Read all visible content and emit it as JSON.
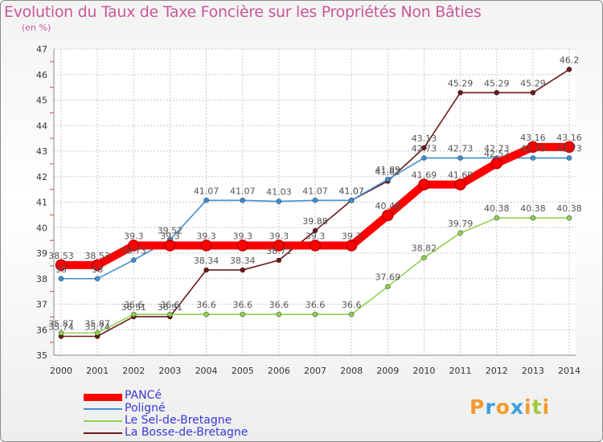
{
  "title": "Evolution du Taux de Taxe Foncière sur les Propriétés Non Bâties",
  "subtitle": "(en %)",
  "brand": {
    "text": "Proxiti",
    "letter_colors": [
      "#f29a2e",
      "#3aa0d8",
      "#f29a2e",
      "#3aa0d8",
      "#f29a2e",
      "#a3c83c",
      "#f29a2e"
    ]
  },
  "chart_data": {
    "type": "line",
    "title": "Evolution du Taux de Taxe Foncière sur les Propriétés Non Bâties",
    "ylabel": "(en %)",
    "xlabel": "",
    "ylim": [
      35,
      47
    ],
    "yticks": [
      35,
      36,
      37,
      38,
      39,
      40,
      41,
      42,
      43,
      44,
      45,
      46,
      47
    ],
    "x": [
      "2000",
      "2001",
      "2002",
      "2003",
      "2004",
      "2005",
      "2006",
      "2007",
      "2008",
      "2009",
      "2010",
      "2011",
      "2012",
      "2013",
      "2014"
    ],
    "grid": true,
    "legend_position": "bottom-left",
    "series": [
      {
        "name": "PANCé",
        "color": "#ff0000",
        "values": [
          38.53,
          38.53,
          39.3,
          39.3,
          39.3,
          39.3,
          39.3,
          39.3,
          39.3,
          40.48,
          41.69,
          41.69,
          42.52,
          43.16,
          43.16
        ]
      },
      {
        "name": "Poligné",
        "color": "#3f8fd2",
        "values": [
          38,
          38,
          38.73,
          39.52,
          41.07,
          41.07,
          41.03,
          41.07,
          41.07,
          41.89,
          42.73,
          42.73,
          42.73,
          42.73,
          42.73
        ]
      },
      {
        "name": "Le Sel-de-Bretagne",
        "color": "#8fd14f",
        "values": [
          35.87,
          35.87,
          36.6,
          36.6,
          36.6,
          36.6,
          36.6,
          36.6,
          36.6,
          37.69,
          38.82,
          39.79,
          40.38,
          40.38,
          40.38
        ]
      },
      {
        "name": "La Bosse-de-Bretagne",
        "color": "#6b1a1a",
        "values": [
          35.74,
          35.74,
          36.51,
          36.51,
          38.34,
          38.34,
          38.72,
          39.88,
          41.07,
          41.82,
          43.13,
          45.29,
          45.29,
          45.29,
          46.2
        ]
      }
    ]
  }
}
